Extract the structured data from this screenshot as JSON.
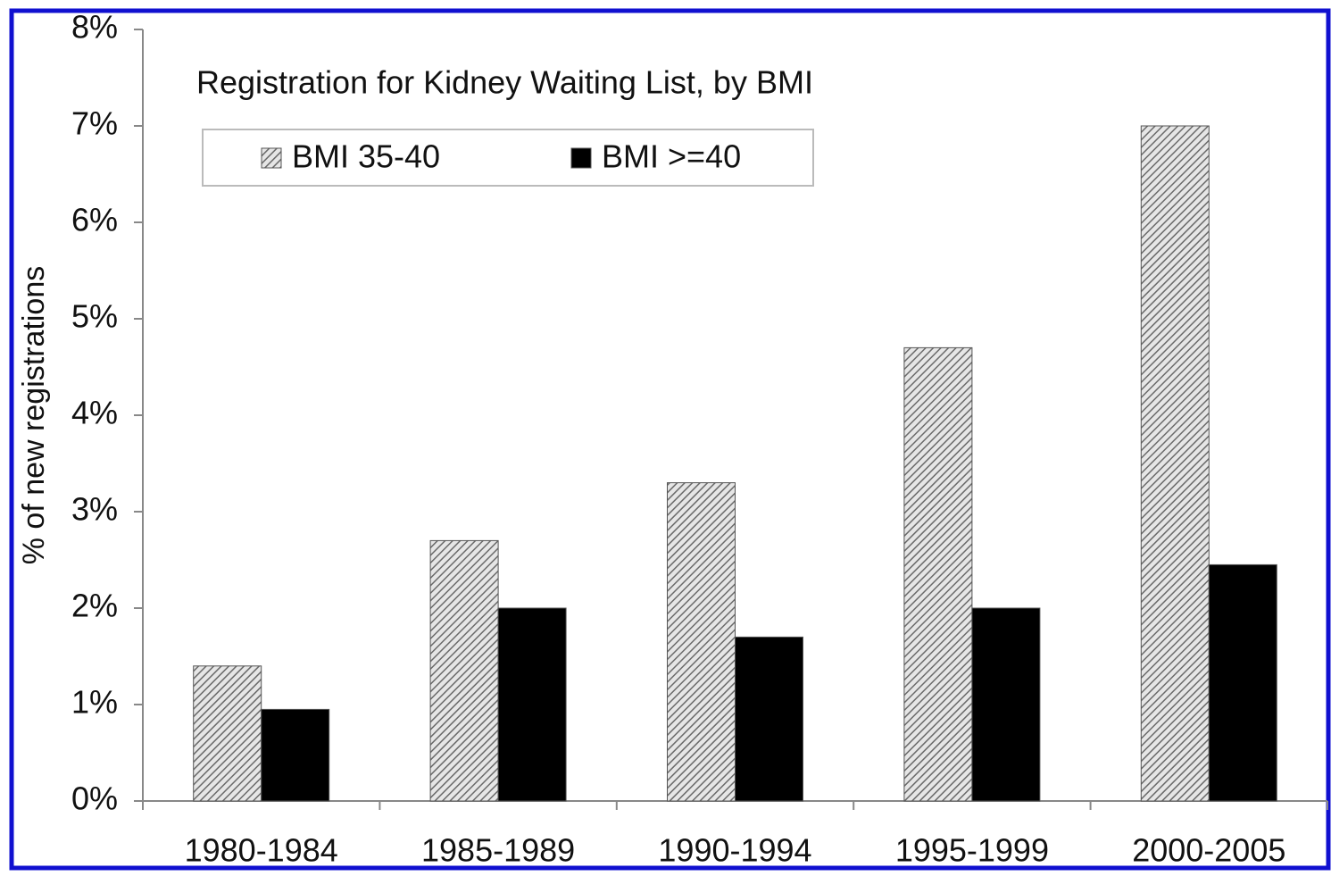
{
  "chart_data": {
    "type": "bar",
    "title": "Registration for Kidney Waiting List, by BMI",
    "y_label": "% of new registrations",
    "categories": [
      "1980-1984",
      "1985-1989",
      "1990-1994",
      "1995-1999",
      "2000-2005"
    ],
    "series": [
      {
        "name": "BMI 35-40",
        "color": "#aaaaaa",
        "pattern": "hatch",
        "values": [
          1.4,
          2.7,
          3.3,
          4.7,
          7.0
        ]
      },
      {
        "name": "BMI >=40",
        "color": "#000000",
        "values": [
          0.95,
          2.0,
          1.7,
          2.0,
          2.45
        ]
      }
    ],
    "ylim": [
      0,
      8
    ],
    "yticks": [
      {
        "value": 0,
        "label": "0%"
      },
      {
        "value": 1,
        "label": "1%"
      },
      {
        "value": 2,
        "label": "2%"
      },
      {
        "value": 3,
        "label": "3%"
      },
      {
        "value": 4,
        "label": "4%"
      },
      {
        "value": 5,
        "label": "5%"
      },
      {
        "value": 6,
        "label": "6%"
      },
      {
        "value": 7,
        "label": "7%"
      },
      {
        "value": 8,
        "label": "8%"
      }
    ],
    "grid": false,
    "legend": "top-left"
  }
}
